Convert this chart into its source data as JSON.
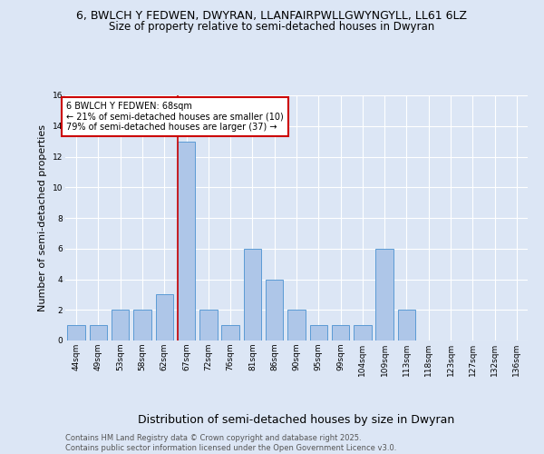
{
  "title_line1": "6, BWLCH Y FEDWEN, DWYRAN, LLANFAIRPWLLGWYNGYLL, LL61 6LZ",
  "title_line2": "Size of property relative to semi-detached houses in Dwyran",
  "xlabel": "Distribution of semi-detached houses by size in Dwyran",
  "ylabel": "Number of semi-detached properties",
  "footnote": "Contains HM Land Registry data © Crown copyright and database right 2025.\nContains public sector information licensed under the Open Government Licence v3.0.",
  "bin_labels": [
    "44sqm",
    "49sqm",
    "53sqm",
    "58sqm",
    "62sqm",
    "67sqm",
    "72sqm",
    "76sqm",
    "81sqm",
    "86sqm",
    "90sqm",
    "95sqm",
    "99sqm",
    "104sqm",
    "109sqm",
    "113sqm",
    "118sqm",
    "123sqm",
    "127sqm",
    "132sqm",
    "136sqm"
  ],
  "bar_heights": [
    1,
    1,
    2,
    2,
    3,
    13,
    2,
    1,
    6,
    4,
    2,
    1,
    1,
    1,
    6,
    2,
    0,
    0,
    0,
    0,
    0
  ],
  "bar_color": "#aec6e8",
  "bar_edge_color": "#5b9bd5",
  "property_line_color": "#cc0000",
  "annotation_box_color": "#cc0000",
  "annotation_text": "6 BWLCH Y FEDWEN: 68sqm\n← 21% of semi-detached houses are smaller (10)\n79% of semi-detached houses are larger (37) →",
  "ylim": [
    0,
    16
  ],
  "yticks": [
    0,
    2,
    4,
    6,
    8,
    10,
    12,
    14,
    16
  ],
  "background_color": "#dce6f5",
  "plot_bg_color": "#dce6f5",
  "grid_color": "#ffffff",
  "title_fontsize": 9,
  "subtitle_fontsize": 8.5,
  "ylabel_fontsize": 8,
  "xlabel_fontsize": 9,
  "tick_fontsize": 6.5,
  "annotation_fontsize": 7,
  "footnote_fontsize": 6
}
